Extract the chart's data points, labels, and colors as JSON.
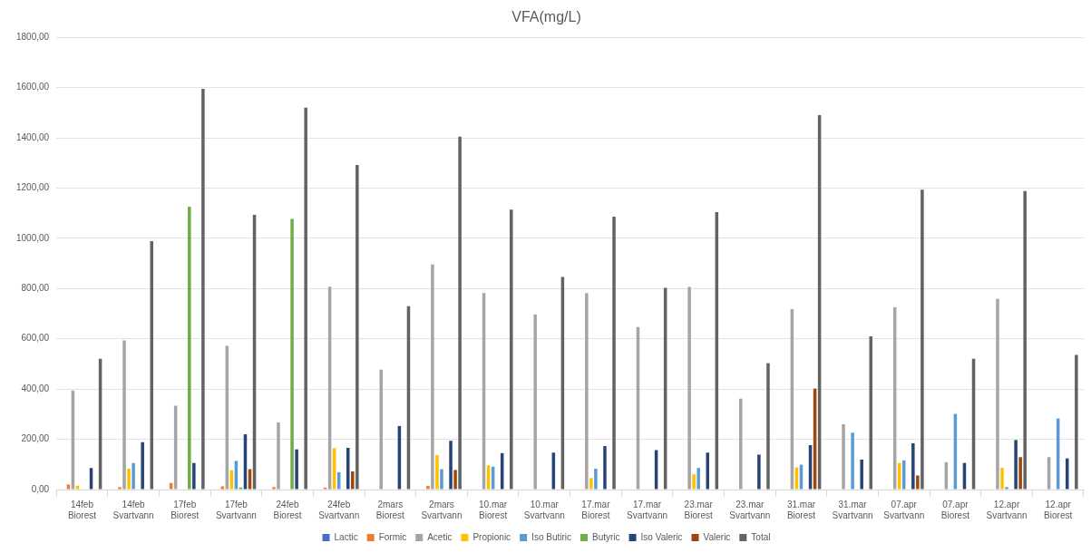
{
  "chart_data": {
    "type": "bar",
    "title": "VFA(mg/L)",
    "categories": [
      "14feb\nBiorest",
      "14feb\nSvartvann",
      "17feb\nBiorest",
      "17feb\nSvartvann",
      "24feb\nBiorest",
      "24feb\nSvartvann",
      "2mars\nBiorest",
      "2mars\nSvartvann",
      "10.mar\nBiorest",
      "10.mar\nSvartvann",
      "17.mar\nBiorest",
      "17.mar\nSvartvann",
      "23.mar\nBiorest",
      "23.mar\nSvartvann",
      "31.mar\nBiorest",
      "31.mar\nSvartvann",
      "07.apr\nSvartvann",
      "07.apr\nBiorest",
      "12.apr\nSvartvann",
      "12.apr\nBiorest"
    ],
    "series": [
      {
        "name": "Lactic",
        "color": "#4472c4",
        "values": [
          0,
          0,
          0,
          0,
          0,
          0,
          0,
          0,
          0,
          0,
          0,
          0,
          0,
          0,
          0,
          0,
          0,
          0,
          0,
          0
        ]
      },
      {
        "name": "Formic",
        "color": "#ed7d31",
        "values": [
          20,
          10,
          26,
          13,
          10,
          8,
          0,
          15,
          0,
          0,
          0,
          0,
          0,
          0,
          0,
          0,
          0,
          0,
          0,
          0
        ]
      },
      {
        "name": "Acetic",
        "color": "#a5a5a5",
        "values": [
          394,
          594,
          334,
          572,
          267,
          807,
          477,
          896,
          782,
          697,
          782,
          647,
          807,
          362,
          718,
          260,
          725,
          109,
          759,
          129
        ]
      },
      {
        "name": "Propionic",
        "color": "#ffc000",
        "values": [
          15,
          83,
          0,
          77,
          0,
          165,
          0,
          137,
          96,
          0,
          46,
          0,
          61,
          0,
          88,
          0,
          106,
          0,
          86,
          0
        ]
      },
      {
        "name": "Iso Butiric",
        "color": "#5b9bd5",
        "values": [
          0,
          106,
          0,
          114,
          0,
          69,
          0,
          81,
          91,
          0,
          83,
          0,
          86,
          0,
          99,
          226,
          116,
          301,
          10,
          283
        ]
      },
      {
        "name": "Butyric",
        "color": "#70ad47",
        "values": [
          0,
          0,
          1126,
          8,
          1077,
          0,
          0,
          0,
          0,
          0,
          0,
          0,
          0,
          0,
          0,
          0,
          0,
          0,
          0,
          0
        ]
      },
      {
        "name": "Iso Valeric",
        "color": "#264478",
        "values": [
          86,
          189,
          106,
          220,
          160,
          166,
          253,
          194,
          145,
          147,
          173,
          157,
          147,
          139,
          177,
          119,
          184,
          106,
          197,
          124
        ]
      },
      {
        "name": "Valeric",
        "color": "#9e480e",
        "values": [
          0,
          0,
          0,
          81,
          0,
          72,
          0,
          78,
          0,
          0,
          0,
          0,
          0,
          0,
          402,
          0,
          56,
          0,
          129,
          0
        ]
      },
      {
        "name": "Total",
        "color": "#636363",
        "values": [
          521,
          989,
          1595,
          1093,
          1520,
          1292,
          730,
          1405,
          1114,
          846,
          1086,
          803,
          1104,
          503,
          1490,
          610,
          1194,
          521,
          1188,
          536
        ]
      }
    ],
    "ylim": [
      0,
      1800
    ],
    "yticks": [
      {
        "value": 0,
        "label": "0,00"
      },
      {
        "value": 200,
        "label": "200,00"
      },
      {
        "value": 400,
        "label": "400,00"
      },
      {
        "value": 600,
        "label": "600,00"
      },
      {
        "value": 800,
        "label": "800,00"
      },
      {
        "value": 1000,
        "label": "1000,00"
      },
      {
        "value": 1200,
        "label": "1200,00"
      },
      {
        "value": 1400,
        "label": "1400,00"
      },
      {
        "value": 1600,
        "label": "1600,00"
      },
      {
        "value": 1800,
        "label": "1800,00"
      }
    ],
    "grid": "y",
    "legend": "bottom"
  }
}
